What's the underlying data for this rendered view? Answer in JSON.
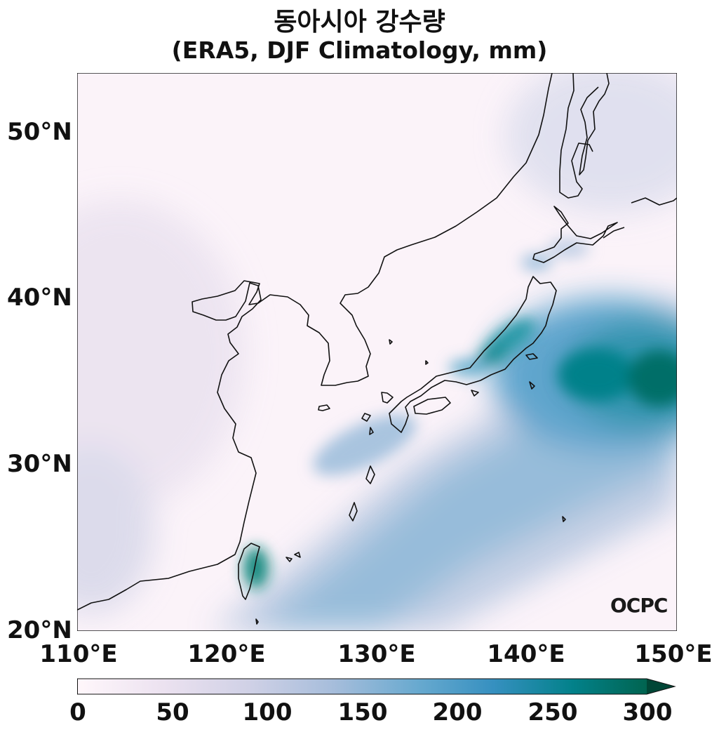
{
  "title_line1": "동아시아 강수량",
  "title_line2": "(ERA5, DJF Climatology, mm)",
  "map": {
    "lat_ticks": [
      "50°N",
      "40°N",
      "30°N",
      "20°N"
    ],
    "lon_ticks": [
      "110°E",
      "120°E",
      "130°E",
      "140°E",
      "150°E"
    ],
    "extent": {
      "lon": [
        110,
        150
      ],
      "lat": [
        20,
        53.5
      ]
    },
    "logo": "OCPC"
  },
  "colorbar": {
    "ticks": [
      "0",
      "50",
      "100",
      "150",
      "200",
      "250",
      "300"
    ],
    "range": [
      0,
      300
    ],
    "extend": "max",
    "colors": [
      "#fff7fb",
      "#ece2f0",
      "#d0d1e6",
      "#a6bddb",
      "#67a9cf",
      "#3690c0",
      "#02818a",
      "#016450"
    ]
  }
}
